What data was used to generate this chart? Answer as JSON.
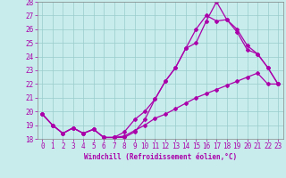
{
  "xlabel": "Windchill (Refroidissement éolien,°C)",
  "xlim_min": -0.5,
  "xlim_max": 23.5,
  "ylim_min": 18,
  "ylim_max": 28,
  "xticks": [
    0,
    1,
    2,
    3,
    4,
    5,
    6,
    7,
    8,
    9,
    10,
    11,
    12,
    13,
    14,
    15,
    16,
    17,
    18,
    19,
    20,
    21,
    22,
    23
  ],
  "yticks": [
    18,
    19,
    20,
    21,
    22,
    23,
    24,
    25,
    26,
    27,
    28
  ],
  "bg_color": "#c8ecec",
  "line_color": "#aa00aa",
  "grid_color": "#99cccc",
  "line1_x": [
    0,
    1,
    2,
    3,
    4,
    5,
    6,
    7,
    8,
    9,
    10,
    11,
    12,
    13,
    14,
    15,
    16,
    17,
    18,
    19,
    20,
    21,
    22,
    23
  ],
  "line1_y": [
    19.8,
    19.0,
    18.4,
    18.8,
    18.4,
    18.7,
    18.1,
    18.1,
    18.1,
    18.5,
    19.4,
    20.9,
    22.2,
    23.2,
    24.6,
    26.0,
    27.0,
    26.6,
    26.7,
    26.0,
    24.8,
    24.2,
    23.2,
    22.0
  ],
  "line2_x": [
    0,
    1,
    2,
    3,
    4,
    5,
    6,
    7,
    8,
    9,
    10,
    11,
    12,
    13,
    14,
    15,
    16,
    17,
    18,
    19,
    20,
    21,
    22,
    23
  ],
  "line2_y": [
    19.8,
    19.0,
    18.4,
    18.8,
    18.4,
    18.7,
    18.1,
    18.1,
    18.5,
    19.4,
    20.0,
    20.9,
    22.2,
    23.2,
    24.6,
    25.0,
    26.6,
    28.0,
    26.7,
    25.8,
    24.5,
    24.2,
    23.2,
    22.0
  ],
  "line3_x": [
    0,
    1,
    2,
    3,
    4,
    5,
    6,
    7,
    8,
    9,
    10,
    11,
    12,
    13,
    14,
    15,
    16,
    17,
    18,
    19,
    20,
    21,
    22,
    23
  ],
  "line3_y": [
    19.8,
    19.0,
    18.4,
    18.8,
    18.4,
    18.7,
    18.1,
    18.1,
    18.2,
    18.6,
    19.0,
    19.5,
    19.8,
    20.2,
    20.6,
    21.0,
    21.3,
    21.6,
    21.9,
    22.2,
    22.5,
    22.8,
    22.0,
    22.0
  ],
  "tick_fontsize": 5.5,
  "xlabel_fontsize": 5.5,
  "marker": "D",
  "markersize": 2.0,
  "linewidth": 0.9
}
